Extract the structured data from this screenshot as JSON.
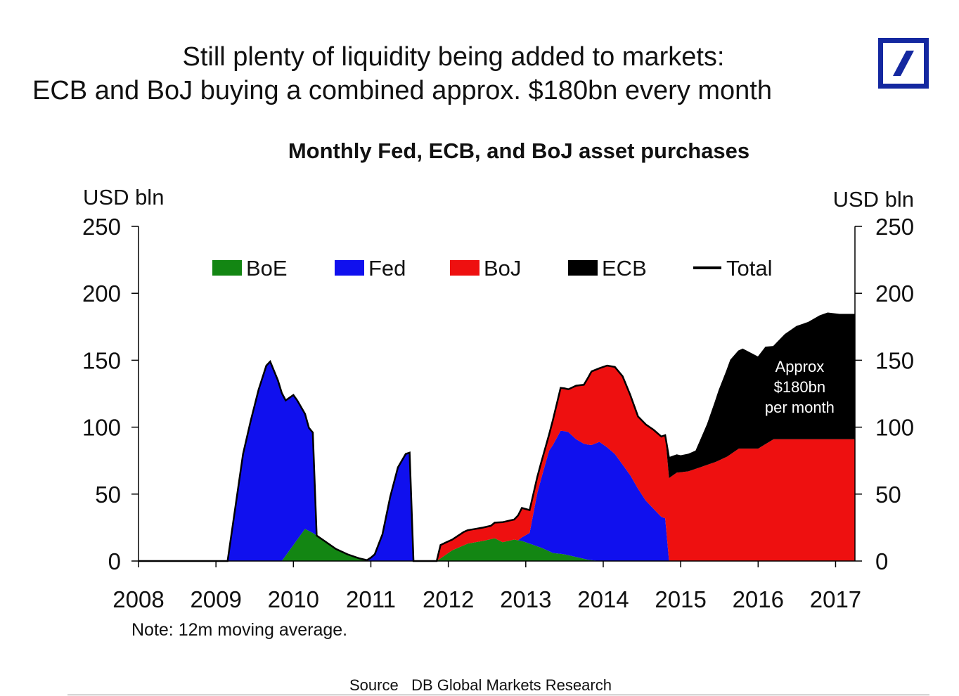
{
  "header": {
    "line1": "Still plenty of liquidity being added to markets:",
    "line2": "ECB and BoJ buying a combined approx. $180bn every month"
  },
  "logo": {
    "name": "deutsche-bank-logo",
    "color": "#1428a0"
  },
  "chart_data": {
    "type": "area",
    "stacked": true,
    "title": "Monthly Fed, ECB, and BoJ asset purchases",
    "ylabel_left": "USD bln",
    "ylabel_right": "USD bln",
    "ylim": [
      0,
      250
    ],
    "yticks": [
      0,
      50,
      100,
      150,
      200,
      250
    ],
    "xlim": [
      2008,
      2017.25
    ],
    "xticks": [
      2008,
      2009,
      2010,
      2011,
      2012,
      2013,
      2014,
      2015,
      2016,
      2017
    ],
    "note": "Note: 12m moving average.",
    "legend_position": "top",
    "legend": [
      {
        "name": "BoE",
        "color": "#138613",
        "kind": "box"
      },
      {
        "name": "Fed",
        "color": "#1010ee",
        "kind": "box"
      },
      {
        "name": "BoJ",
        "color": "#ee1010",
        "kind": "box"
      },
      {
        "name": "ECB",
        "color": "#000000",
        "kind": "box"
      },
      {
        "name": "Total",
        "color": "#000000",
        "kind": "line"
      }
    ],
    "annotation": {
      "lines": [
        "Approx",
        "$180bn",
        "per month"
      ],
      "x": 2016.5,
      "y": 135
    },
    "series": [
      {
        "name": "BoE",
        "color": "#138613",
        "points": [
          [
            2008.0,
            0
          ],
          [
            2009.85,
            0
          ],
          [
            2009.95,
            8
          ],
          [
            2010.05,
            16
          ],
          [
            2010.15,
            24
          ],
          [
            2010.25,
            21
          ],
          [
            2010.4,
            15
          ],
          [
            2010.55,
            9
          ],
          [
            2010.7,
            5
          ],
          [
            2010.85,
            2
          ],
          [
            2011.0,
            0
          ],
          [
            2011.85,
            0
          ],
          [
            2011.95,
            4
          ],
          [
            2012.05,
            8
          ],
          [
            2012.25,
            13
          ],
          [
            2012.45,
            15
          ],
          [
            2012.6,
            17
          ],
          [
            2012.7,
            14
          ],
          [
            2012.85,
            16
          ],
          [
            2012.95,
            15
          ],
          [
            2013.05,
            13
          ],
          [
            2013.2,
            10
          ],
          [
            2013.35,
            6
          ],
          [
            2013.5,
            5
          ],
          [
            2013.65,
            3
          ],
          [
            2013.8,
            1
          ],
          [
            2013.95,
            0
          ],
          [
            2017.25,
            0
          ]
        ]
      },
      {
        "name": "Fed",
        "color": "#1010ee",
        "points": [
          [
            2008.0,
            0
          ],
          [
            2009.15,
            0
          ],
          [
            2009.25,
            40
          ],
          [
            2009.35,
            80
          ],
          [
            2009.45,
            105
          ],
          [
            2009.55,
            128
          ],
          [
            2009.65,
            146
          ],
          [
            2009.7,
            149
          ],
          [
            2009.8,
            135
          ],
          [
            2009.9,
            116
          ],
          [
            2010.0,
            112
          ],
          [
            2010.05,
            104
          ],
          [
            2010.15,
            86
          ],
          [
            2010.2,
            77
          ],
          [
            2010.25,
            75
          ],
          [
            2010.3,
            0
          ],
          [
            2010.85,
            0
          ],
          [
            2010.95,
            0
          ],
          [
            2011.05,
            5
          ],
          [
            2011.15,
            20
          ],
          [
            2011.25,
            48
          ],
          [
            2011.35,
            70
          ],
          [
            2011.45,
            80
          ],
          [
            2011.5,
            81
          ],
          [
            2011.55,
            0
          ],
          [
            2012.8,
            0
          ],
          [
            2012.9,
            0
          ],
          [
            2013.05,
            8
          ],
          [
            2013.15,
            40
          ],
          [
            2013.3,
            75
          ],
          [
            2013.45,
            92
          ],
          [
            2013.55,
            92
          ],
          [
            2013.65,
            88
          ],
          [
            2013.75,
            86
          ],
          [
            2013.85,
            86
          ],
          [
            2013.95,
            89
          ],
          [
            2014.05,
            85
          ],
          [
            2014.15,
            80
          ],
          [
            2014.25,
            72
          ],
          [
            2014.35,
            64
          ],
          [
            2014.45,
            54
          ],
          [
            2014.55,
            45
          ],
          [
            2014.65,
            39
          ],
          [
            2014.75,
            33
          ],
          [
            2014.8,
            32
          ],
          [
            2014.85,
            0
          ],
          [
            2017.25,
            0
          ]
        ]
      },
      {
        "name": "BoJ",
        "color": "#ee1010",
        "points": [
          [
            2008.0,
            0
          ],
          [
            2011.85,
            0
          ],
          [
            2011.9,
            10
          ],
          [
            2012.05,
            8
          ],
          [
            2012.2,
            10
          ],
          [
            2012.35,
            10
          ],
          [
            2012.55,
            10
          ],
          [
            2012.7,
            15
          ],
          [
            2012.85,
            15
          ],
          [
            2012.95,
            22
          ],
          [
            2013.05,
            17
          ],
          [
            2013.15,
            12
          ],
          [
            2013.3,
            12
          ],
          [
            2013.45,
            32
          ],
          [
            2013.55,
            32
          ],
          [
            2013.65,
            40
          ],
          [
            2013.75,
            44
          ],
          [
            2013.85,
            55
          ],
          [
            2013.95,
            55
          ],
          [
            2014.05,
            61
          ],
          [
            2014.15,
            65
          ],
          [
            2014.25,
            66
          ],
          [
            2014.35,
            60
          ],
          [
            2014.45,
            54
          ],
          [
            2014.55,
            57
          ],
          [
            2014.65,
            59
          ],
          [
            2014.75,
            60
          ],
          [
            2014.8,
            62
          ],
          [
            2014.85,
            62
          ],
          [
            2014.95,
            66
          ],
          [
            2015.1,
            67
          ],
          [
            2015.25,
            70
          ],
          [
            2015.45,
            74
          ],
          [
            2015.6,
            78
          ],
          [
            2015.75,
            84
          ],
          [
            2016.0,
            84
          ],
          [
            2016.2,
            91
          ],
          [
            2017.25,
            91
          ]
        ]
      },
      {
        "name": "ECB",
        "color": "#000000",
        "points": [
          [
            2008.0,
            0
          ],
          [
            2014.8,
            0
          ],
          [
            2014.85,
            15
          ],
          [
            2015.0,
            12
          ],
          [
            2015.2,
            13
          ],
          [
            2015.35,
            30
          ],
          [
            2015.5,
            52
          ],
          [
            2015.65,
            70
          ],
          [
            2015.8,
            74
          ],
          [
            2016.0,
            68
          ],
          [
            2016.1,
            72
          ],
          [
            2016.2,
            69
          ],
          [
            2016.35,
            78
          ],
          [
            2016.5,
            84
          ],
          [
            2016.65,
            87
          ],
          [
            2016.8,
            92
          ],
          [
            2016.9,
            94
          ],
          [
            2017.05,
            93
          ],
          [
            2017.25,
            93
          ]
        ]
      }
    ]
  },
  "footer": {
    "source_label": "Source",
    "source_text": "DB Global Markets Research"
  }
}
